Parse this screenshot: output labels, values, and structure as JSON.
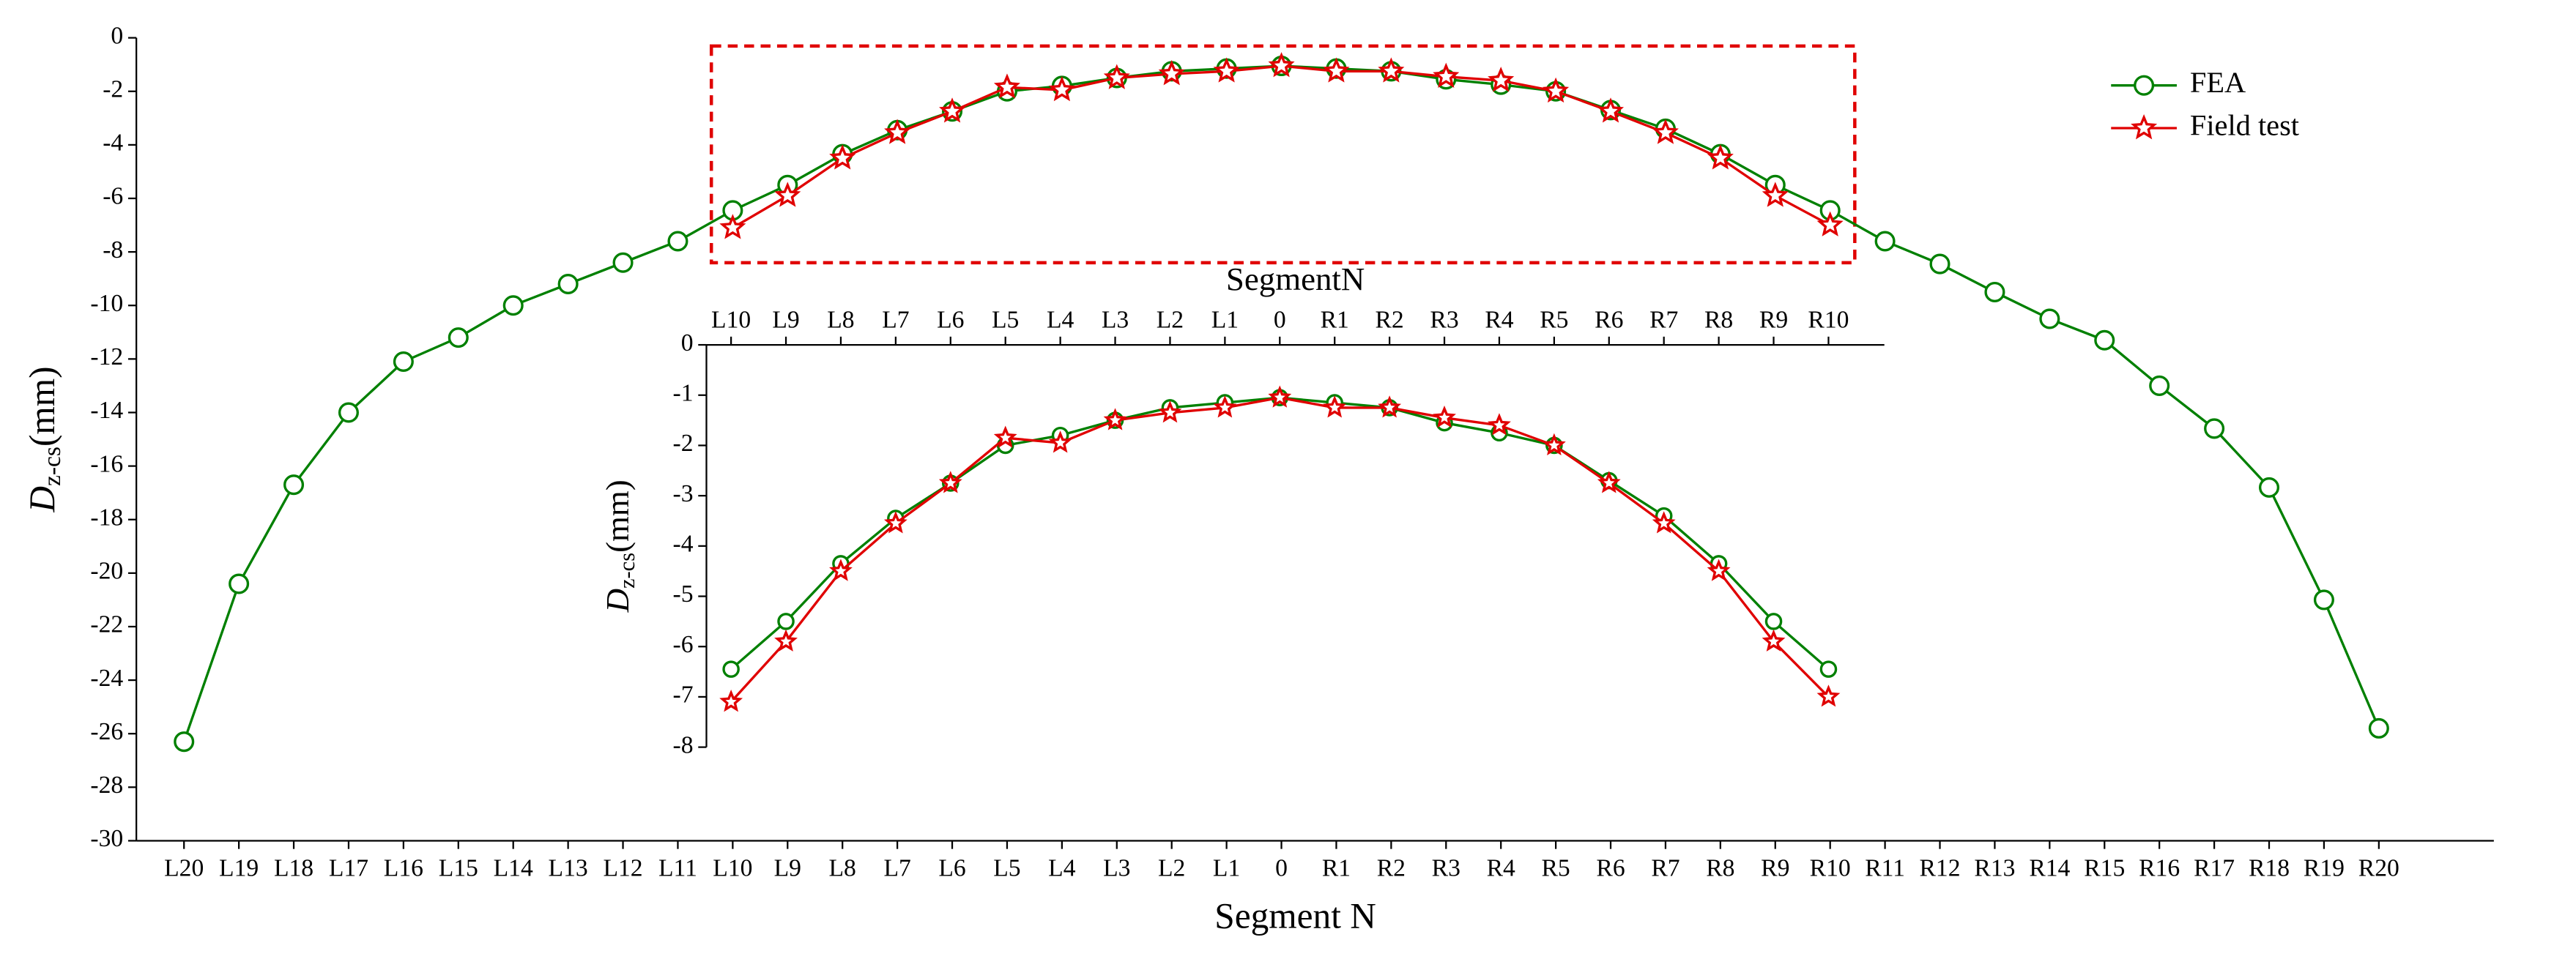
{
  "chart_data": [
    {
      "type": "line",
      "x_label": "Segment N",
      "y_label": {
        "main": "D",
        "sub": "z-cs",
        "unit": "(mm)"
      },
      "categories": [
        "L20",
        "L19",
        "L18",
        "L17",
        "L16",
        "L15",
        "L14",
        "L13",
        "L12",
        "L11",
        "L10",
        "L9",
        "L8",
        "L7",
        "L6",
        "L5",
        "L4",
        "L3",
        "L2",
        "L1",
        "0",
        "R1",
        "R2",
        "R3",
        "R4",
        "R5",
        "R6",
        "R7",
        "R8",
        "R9",
        "R10",
        "R11",
        "R12",
        "R13",
        "R14",
        "R15",
        "R16",
        "R17",
        "R18",
        "R19",
        "R20"
      ],
      "ylim": [
        -30,
        0
      ],
      "yticks": [
        0,
        -2,
        -4,
        -6,
        -8,
        -10,
        -12,
        -14,
        -16,
        -18,
        -20,
        -22,
        -24,
        -26,
        -28,
        -30
      ],
      "legend": "upper right",
      "series": [
        {
          "name": "FEA",
          "color": "#008000",
          "marker": "circle",
          "values": [
            -26.3,
            -20.4,
            -16.7,
            -14.0,
            -12.1,
            -11.2,
            -10.0,
            -9.2,
            -8.4,
            -7.6,
            -6.45,
            -5.5,
            -4.35,
            -3.45,
            -2.75,
            -2.0,
            -1.8,
            -1.5,
            -1.25,
            -1.15,
            -1.05,
            -1.15,
            -1.25,
            -1.55,
            -1.75,
            -2.0,
            -2.7,
            -3.4,
            -4.35,
            -5.5,
            -6.45,
            -7.6,
            -8.45,
            -9.5,
            -10.5,
            -11.3,
            -13.0,
            -14.6,
            -16.8,
            -21.0,
            -25.8
          ]
        },
        {
          "name": "Field test",
          "color": "#e00000",
          "marker": "star",
          "values": [
            null,
            null,
            null,
            null,
            null,
            null,
            null,
            null,
            null,
            null,
            -7.1,
            -5.9,
            -4.5,
            -3.55,
            -2.75,
            -1.85,
            -1.95,
            -1.5,
            -1.35,
            -1.25,
            -1.05,
            -1.25,
            -1.25,
            -1.45,
            -1.6,
            -2.0,
            -2.75,
            -3.55,
            -4.5,
            -5.9,
            -7.0,
            null,
            null,
            null,
            null,
            null,
            null,
            null,
            null,
            null,
            null
          ]
        }
      ]
    },
    {
      "type": "line",
      "x_label": "SegmentN",
      "y_label": {
        "main": "D",
        "sub": "z-cs",
        "unit": "(mm)"
      },
      "categories": [
        "L10",
        "L9",
        "L8",
        "L7",
        "L6",
        "L5",
        "L4",
        "L3",
        "L2",
        "L1",
        "0",
        "R1",
        "R2",
        "R3",
        "R4",
        "R5",
        "R6",
        "R7",
        "R8",
        "R9",
        "R10"
      ],
      "ylim": [
        -8,
        0
      ],
      "yticks": [
        0,
        -1,
        -2,
        -3,
        -4,
        -5,
        -6,
        -7,
        -8
      ],
      "series": [
        {
          "name": "FEA",
          "color": "#008000",
          "marker": "circle",
          "values": [
            -6.45,
            -5.5,
            -4.35,
            -3.45,
            -2.75,
            -2.0,
            -1.8,
            -1.5,
            -1.25,
            -1.15,
            -1.05,
            -1.15,
            -1.25,
            -1.55,
            -1.75,
            -2.0,
            -2.7,
            -3.4,
            -4.35,
            -5.5,
            -6.45
          ]
        },
        {
          "name": "Field test",
          "color": "#e00000",
          "marker": "star",
          "values": [
            -7.1,
            -5.9,
            -4.5,
            -3.55,
            -2.75,
            -1.85,
            -1.95,
            -1.5,
            -1.35,
            -1.25,
            -1.05,
            -1.25,
            -1.25,
            -1.45,
            -1.6,
            -2.0,
            -2.75,
            -3.55,
            -4.5,
            -5.9,
            -7.0
          ]
        }
      ]
    }
  ]
}
